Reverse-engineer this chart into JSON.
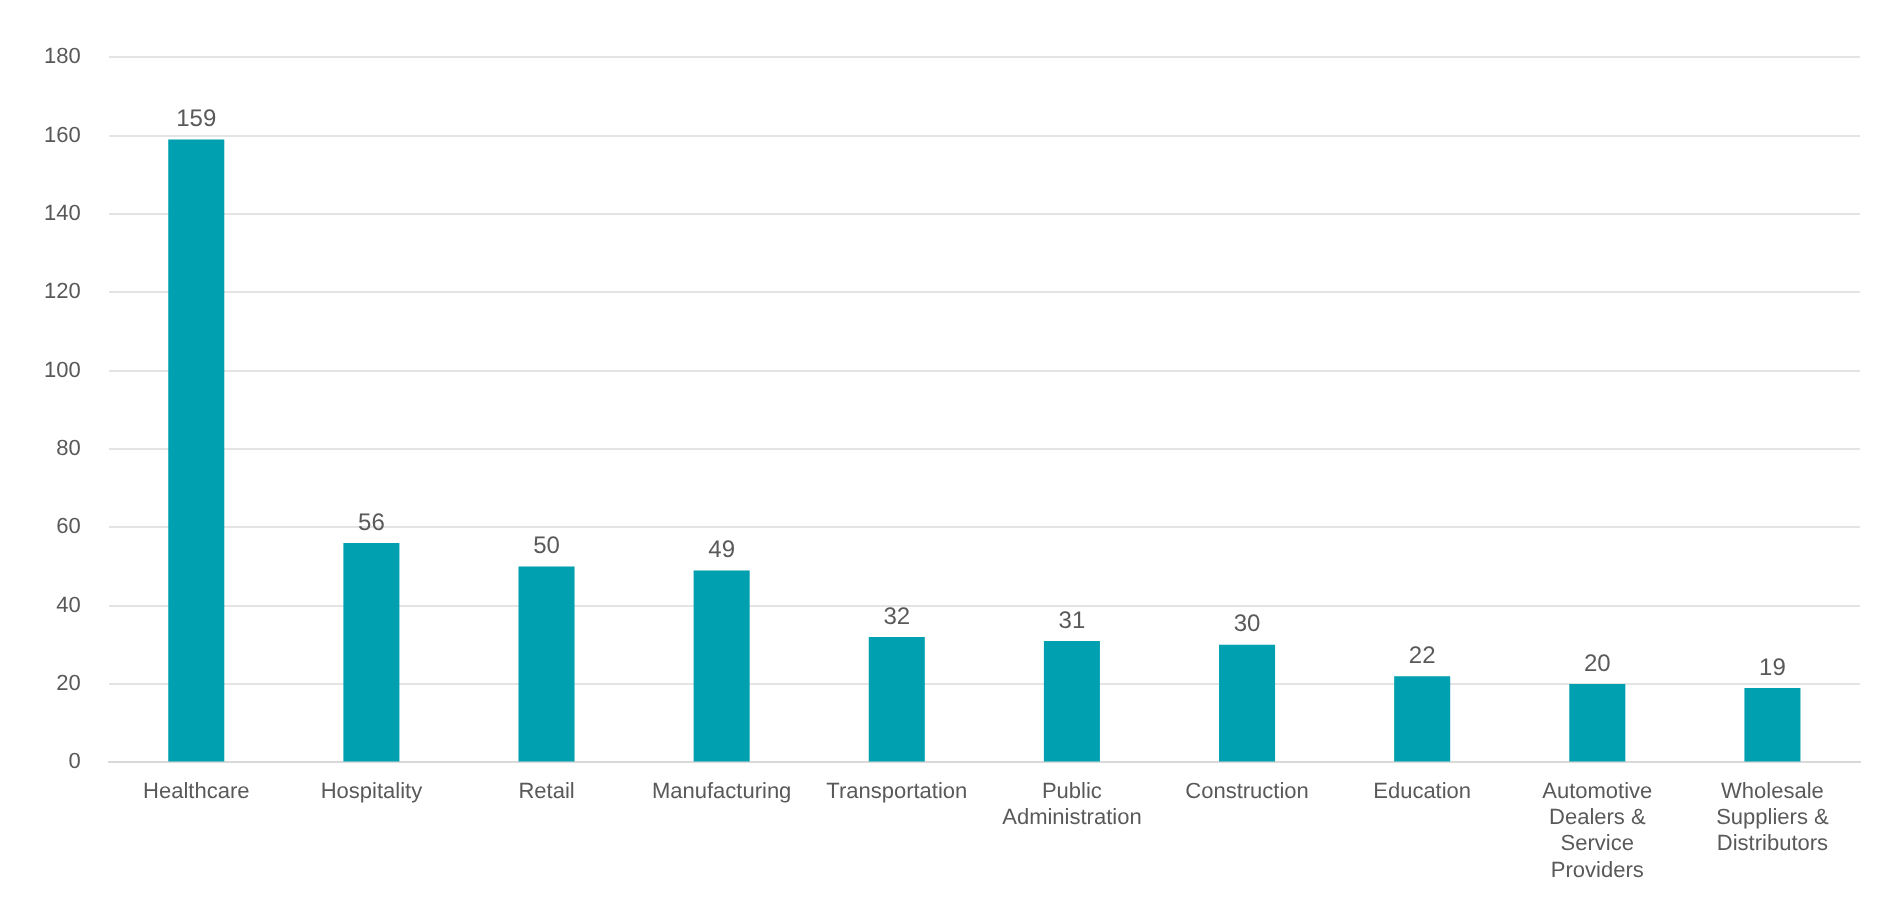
{
  "chart_data": {
    "type": "bar",
    "categories": [
      "Healthcare",
      "Hospitality",
      "Retail",
      "Manufacturing",
      "Transportation",
      "Public Administration",
      "Construction",
      "Education",
      "Automotive Dealers & Service Providers",
      "Wholesale Suppliers & Distributors"
    ],
    "values": [
      159,
      56,
      50,
      49,
      32,
      31,
      30,
      22,
      20,
      19
    ],
    "color": "#00a0b0",
    "ylim": [
      0,
      180
    ],
    "yticks": [
      0,
      20,
      40,
      60,
      80,
      100,
      120,
      140,
      160,
      180
    ],
    "grid": "y",
    "data_labels": true
  }
}
